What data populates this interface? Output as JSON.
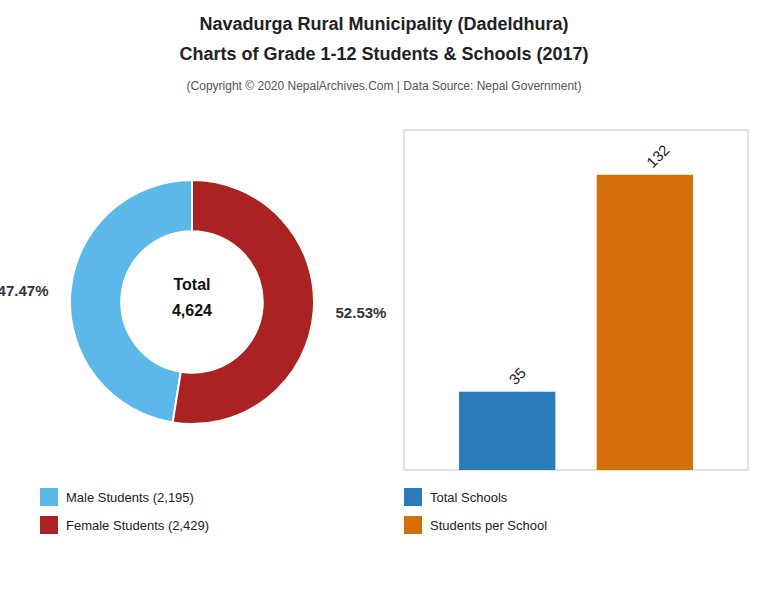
{
  "title": [
    "Navadurga Rural Municipality (Dadeldhura)",
    "Charts of Grade 1-12 Students & Schools (2017)"
  ],
  "subtitle": "(Copyright © 2020 NepalArchives.Com | Data Source: Nepal Government)",
  "chart_data": [
    {
      "type": "pie",
      "categories": [
        "Male Students (2,195)",
        "Female Students (2,429)"
      ],
      "values": [
        47.47,
        52.53
      ],
      "value_labels": [
        "47.47%",
        "52.53%"
      ],
      "colors": [
        "#5bb8e8",
        "#aa2222"
      ],
      "annotations": [
        "Total",
        "4,624"
      ],
      "data_labels": true,
      "legend": "bottom"
    },
    {
      "type": "bar",
      "categories": [
        null
      ],
      "series": [
        {
          "name": "Total Schools",
          "color": "#2b7bba",
          "values": [
            35
          ]
        },
        {
          "name": "Students per School",
          "color": "#d4700a",
          "values": [
            132
          ]
        }
      ],
      "ylim": [
        0,
        152
      ],
      "tick_labels": false,
      "grid": false,
      "data_labels": true,
      "legend": "bottom"
    }
  ]
}
